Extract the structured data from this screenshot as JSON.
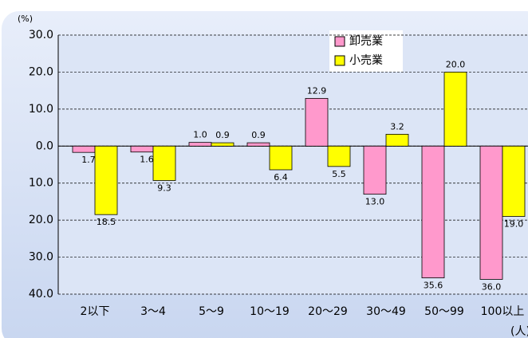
{
  "chart_data": {
    "type": "bar",
    "y_axis_label": "(%)",
    "x_axis_label": "(人)",
    "categories": [
      "2以下",
      "3～4",
      "5～9",
      "10～19",
      "20～29",
      "30～49",
      "50～99",
      "100以上"
    ],
    "series": [
      {
        "name": "卸売業",
        "color": "#ff99cc",
        "values": [
          -1.7,
          -1.6,
          1.0,
          0.9,
          12.9,
          -13.0,
          -35.6,
          -36.0
        ],
        "value_labels": [
          "1.7",
          "1.6",
          "1.0",
          "0.9",
          "12.9",
          "13.0",
          "35.6",
          "36.0"
        ]
      },
      {
        "name": "小売業",
        "color": "#ffff00",
        "values": [
          -18.5,
          -9.3,
          0.9,
          -6.4,
          -5.5,
          3.2,
          20.0,
          -19.0
        ],
        "value_labels": [
          "18.5",
          "9.3",
          "0.9",
          "6.4",
          "5.5",
          "3.2",
          "20.0",
          "19.0"
        ]
      }
    ],
    "ylim": [
      -40,
      30
    ],
    "yticks": [
      {
        "value": 30,
        "label": "30.0"
      },
      {
        "value": 20,
        "label": "20.0"
      },
      {
        "value": 10,
        "label": "10.0"
      },
      {
        "value": 0,
        "label": "0.0"
      },
      {
        "value": -10,
        "label": "10.0"
      },
      {
        "value": -20,
        "label": "20.0"
      },
      {
        "value": -30,
        "label": "30.0"
      },
      {
        "value": -40,
        "label": "40.0"
      }
    ],
    "grid": true
  }
}
